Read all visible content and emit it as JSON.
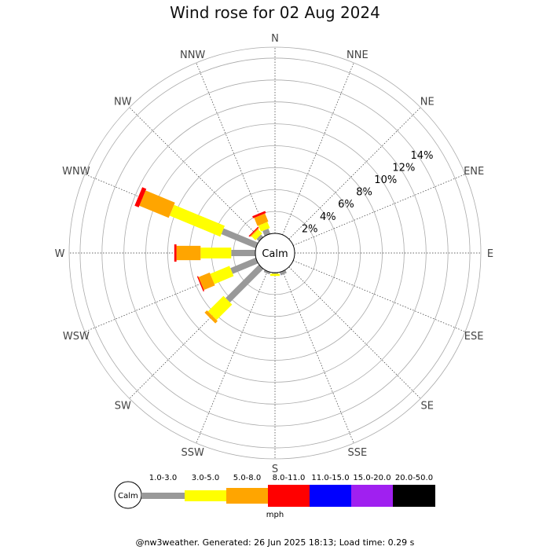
{
  "title": "Wind rose for 02 Aug 2024",
  "footer": "@nw3weather. Generated: 26 Jun 2025 18:13; Load time: 0.29 s",
  "chart_data": {
    "type": "wind-rose",
    "title": "Wind rose for 02 Aug 2024",
    "directions": [
      "N",
      "NNE",
      "NE",
      "ENE",
      "E",
      "ESE",
      "SE",
      "SSE",
      "S",
      "SSW",
      "SW",
      "WSW",
      "W",
      "WNW",
      "NW",
      "NNW"
    ],
    "radial_ticks": [
      "2%",
      "4%",
      "6%",
      "8%",
      "10%",
      "12%",
      "14%"
    ],
    "radial_tick_values": [
      2,
      4,
      6,
      8,
      10,
      12,
      14
    ],
    "radial_max": 17,
    "center_label": "Calm",
    "speed_bins": [
      {
        "range": "1.0-3.0",
        "color": "#999999"
      },
      {
        "range": "3.0-5.0",
        "color": "#ffff00"
      },
      {
        "range": "5.0-8.0",
        "color": "#ffa500"
      },
      {
        "range": "8.0-11.0",
        "color": "#ff0000"
      },
      {
        "range": "11.0-15.0",
        "color": "#0000ff"
      },
      {
        "range": "15.0-20.0",
        "color": "#a020f0"
      },
      {
        "range": "20.0-50.0",
        "color": "#000000"
      }
    ],
    "units": "mph",
    "series": [
      {
        "direction": "NNW",
        "values": [
          0.5,
          0.6,
          0.8,
          0.2,
          0,
          0,
          0
        ]
      },
      {
        "direction": "NW",
        "values": [
          0.3,
          0.5,
          0.1,
          0.1,
          0,
          0,
          0
        ]
      },
      {
        "direction": "WNW",
        "values": [
          3.4,
          5.0,
          2.9,
          0.4,
          0,
          0,
          0
        ]
      },
      {
        "direction": "W",
        "values": [
          2.2,
          2.8,
          2.2,
          0.2,
          0,
          0,
          0
        ]
      },
      {
        "direction": "WSW",
        "values": [
          2.5,
          1.9,
          1.1,
          0.1,
          0,
          0,
          0
        ]
      },
      {
        "direction": "SW",
        "values": [
          4.3,
          2.0,
          0.3,
          0,
          0,
          0,
          0
        ]
      },
      {
        "direction": "SSW",
        "values": [
          0.2,
          0,
          0,
          0,
          0,
          0,
          0
        ]
      },
      {
        "direction": "S",
        "values": [
          0.1,
          0.2,
          0,
          0,
          0,
          0,
          0
        ]
      },
      {
        "direction": "SSE",
        "values": [
          0.3,
          0,
          0,
          0,
          0,
          0,
          0
        ]
      }
    ]
  }
}
